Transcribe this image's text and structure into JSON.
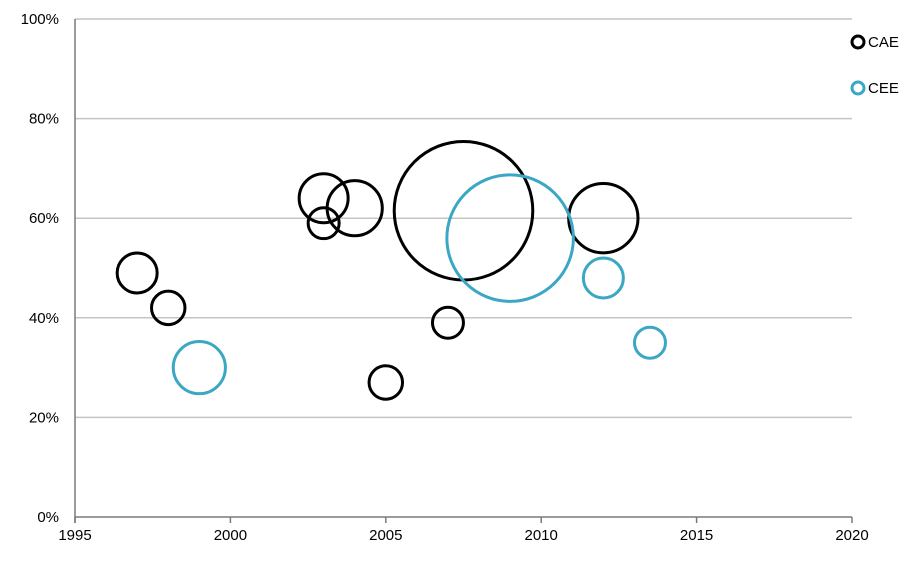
{
  "chart_data": {
    "type": "scatter",
    "subtype": "bubble",
    "title": "",
    "xlabel": "",
    "ylabel": "",
    "xlim": [
      1995,
      2020
    ],
    "ylim": [
      0,
      100
    ],
    "x_ticks": [
      1995,
      2000,
      2005,
      2010,
      2015,
      2020
    ],
    "y_ticks": [
      0,
      20,
      40,
      60,
      80,
      100
    ],
    "x_tick_labels": [
      "1995",
      "2000",
      "2005",
      "2010",
      "2015",
      "2020"
    ],
    "y_tick_labels": [
      "0%",
      "20%",
      "40%",
      "60%",
      "80%",
      "100%"
    ],
    "y_unit": "%",
    "grid": {
      "horizontal": true,
      "vertical": false
    },
    "legend_position": "top-right",
    "series": [
      {
        "name": "CAE",
        "color": "#000000",
        "points": [
          {
            "x": 1997,
            "y": 49,
            "size": 1.0
          },
          {
            "x": 1998,
            "y": 42,
            "size": 0.7
          },
          {
            "x": 2003,
            "y": 64,
            "size": 1.5
          },
          {
            "x": 2003,
            "y": 59,
            "size": 0.6
          },
          {
            "x": 2004,
            "y": 62,
            "size": 1.9
          },
          {
            "x": 2005,
            "y": 27,
            "size": 0.7
          },
          {
            "x": 2007,
            "y": 39,
            "size": 0.6
          },
          {
            "x": 2007.5,
            "y": 61.5,
            "size": 12.0
          },
          {
            "x": 2012,
            "y": 60,
            "size": 3.0
          }
        ]
      },
      {
        "name": "CEE",
        "color": "#3BA7C4",
        "points": [
          {
            "x": 1999,
            "y": 30,
            "size": 1.7
          },
          {
            "x": 2009,
            "y": 56,
            "size": 10.0
          },
          {
            "x": 2012,
            "y": 48,
            "size": 1.0
          },
          {
            "x": 2013.5,
            "y": 35,
            "size": 0.6
          }
        ]
      }
    ]
  }
}
